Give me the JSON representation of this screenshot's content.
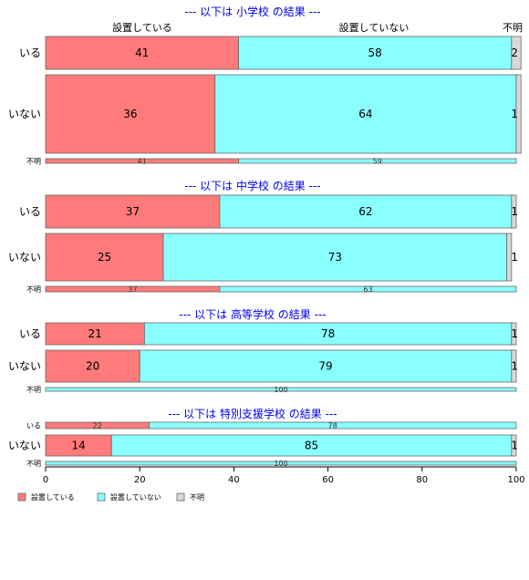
{
  "chart_data": {
    "type": "bar",
    "orientation": "horizontal",
    "stacked": true,
    "xlim": [
      0,
      100
    ],
    "x_ticks": [
      0,
      20,
      40,
      60,
      80,
      100
    ],
    "categories": [
      "設置している",
      "設置していない",
      "不明"
    ],
    "colors": [
      "#ff7a7a",
      "#8affff",
      "#d9d9d9"
    ],
    "legend": {
      "position": "bottom-left",
      "entries": [
        "設置している",
        "設置していない",
        "不明"
      ]
    },
    "panels": [
      {
        "title": "--- 以下は 小学校 の結果 ---",
        "rows": [
          {
            "label": "いる",
            "values": [
              41,
              58,
              2
            ],
            "labels": [
              "41",
              "58",
              "2"
            ]
          },
          {
            "label": "いない",
            "values": [
              36,
              64,
              1
            ],
            "labels": [
              "36",
              "64",
              "1"
            ]
          },
          {
            "label": "不明",
            "values": [
              41,
              59,
              0
            ],
            "labels": [
              "41",
              "59",
              ""
            ]
          }
        ]
      },
      {
        "title": "--- 以下は 中学校 の結果 ---",
        "rows": [
          {
            "label": "いる",
            "values": [
              37,
              62,
              1
            ],
            "labels": [
              "37",
              "62",
              "1"
            ]
          },
          {
            "label": "いない",
            "values": [
              25,
              73,
              1
            ],
            "labels": [
              "25",
              "73",
              "1"
            ]
          },
          {
            "label": "不明",
            "values": [
              37,
              63,
              0
            ],
            "labels": [
              "37",
              "63",
              ""
            ]
          }
        ]
      },
      {
        "title": "--- 以下は 高等学校 の結果 ---",
        "rows": [
          {
            "label": "いる",
            "values": [
              21,
              78,
              1
            ],
            "labels": [
              "21",
              "78",
              "1"
            ]
          },
          {
            "label": "いない",
            "values": [
              20,
              79,
              1
            ],
            "labels": [
              "20",
              "79",
              "1"
            ]
          },
          {
            "label": "不明",
            "values": [
              0,
              100,
              0
            ],
            "labels": [
              "",
              "100",
              ""
            ]
          }
        ]
      },
      {
        "title": "--- 以下は 特別支援学校 の結果 ---",
        "rows": [
          {
            "label": "いる",
            "values": [
              22,
              78,
              0
            ],
            "labels": [
              "22",
              "78",
              ""
            ]
          },
          {
            "label": "いない",
            "values": [
              14,
              85,
              1
            ],
            "labels": [
              "14",
              "85",
              "1"
            ]
          },
          {
            "label": "不明",
            "values": [
              0,
              100,
              0
            ],
            "labels": [
              "",
              "100",
              ""
            ]
          }
        ]
      }
    ]
  }
}
